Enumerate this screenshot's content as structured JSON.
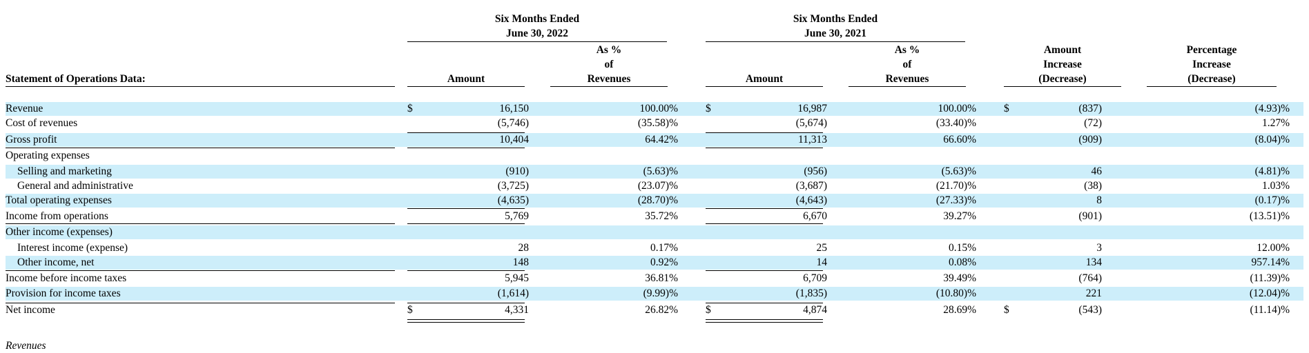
{
  "header": {
    "period1_line1": "Six Months Ended",
    "period1_line2": "June 30, 2022",
    "period2_line1": "Six Months Ended",
    "period2_line2": "June 30, 2021",
    "pct_line1": "As %",
    "pct_line2": "of",
    "pct_line3": "Revenues",
    "amount_label": "Amount",
    "change_amount_line1": "Amount",
    "change_amount_line2": "Increase",
    "change_amount_line3": "(Decrease)",
    "change_pct_line1": "Percentage",
    "change_pct_line2": "Increase",
    "change_pct_line3": "(Decrease)",
    "section_title": "Statement of Operations Data:"
  },
  "rows": [
    {
      "label": "Revenue",
      "indent": false,
      "shaded": true,
      "a2022": "16,150",
      "p2022": "100.00%",
      "a2021": "16,987",
      "p2021": "100.00%",
      "chg": "(837)",
      "chg_pct": "(4.93)%",
      "dollar": true
    },
    {
      "label": "Cost of revenues",
      "indent": false,
      "shaded": false,
      "a2022": "(5,746)",
      "p2022": "(35.58)%",
      "a2021": "(5,674)",
      "p2021": "(33.40)%",
      "chg": "(72)",
      "chg_pct": "1.27%"
    },
    {
      "label": "Gross profit",
      "indent": false,
      "shaded": true,
      "a2022": "10,404",
      "p2022": "64.42%",
      "a2021": "11,313",
      "p2021": "66.60%",
      "chg": "(909)",
      "chg_pct": "(8.04)%"
    },
    {
      "label": "Operating expenses",
      "indent": false,
      "shaded": false,
      "a2022": "",
      "p2022": "",
      "a2021": "",
      "p2021": "",
      "chg": "",
      "chg_pct": ""
    },
    {
      "label": "Selling and marketing",
      "indent": true,
      "shaded": true,
      "a2022": "(910)",
      "p2022": "(5.63)%",
      "a2021": "(956)",
      "p2021": "(5.63)%",
      "chg": "46",
      "chg_pct": "(4.81)%"
    },
    {
      "label": "General and administrative",
      "indent": true,
      "shaded": false,
      "a2022": "(3,725)",
      "p2022": "(23.07)%",
      "a2021": "(3,687)",
      "p2021": "(21.70)%",
      "chg": "(38)",
      "chg_pct": "1.03%"
    },
    {
      "label": "Total operating expenses",
      "indent": false,
      "shaded": true,
      "a2022": "(4,635)",
      "p2022": "(28.70)%",
      "a2021": "(4,643)",
      "p2021": "(27.33)%",
      "chg": "8",
      "chg_pct": "(0.17)%"
    },
    {
      "label": "Income from operations",
      "indent": false,
      "shaded": false,
      "a2022": "5,769",
      "p2022": "35.72%",
      "a2021": "6,670",
      "p2021": "39.27%",
      "chg": "(901)",
      "chg_pct": "(13.51)%"
    },
    {
      "label": "Other income (expenses)",
      "indent": false,
      "shaded": true,
      "a2022": "",
      "p2022": "",
      "a2021": "",
      "p2021": "",
      "chg": "",
      "chg_pct": ""
    },
    {
      "label": "Interest income (expense)",
      "indent": true,
      "shaded": false,
      "a2022": "28",
      "p2022": "0.17%",
      "a2021": "25",
      "p2021": "0.15%",
      "chg": "3",
      "chg_pct": "12.00%"
    },
    {
      "label": "Other income, net",
      "indent": true,
      "shaded": true,
      "a2022": "148",
      "p2022": "0.92%",
      "a2021": "14",
      "p2021": "0.08%",
      "chg": "134",
      "chg_pct": "957.14%"
    },
    {
      "label": "Income before income taxes",
      "indent": false,
      "shaded": false,
      "a2022": "5,945",
      "p2022": "36.81%",
      "a2021": "6,709",
      "p2021": "39.49%",
      "chg": "(764)",
      "chg_pct": "(11.39)%"
    },
    {
      "label": "Provision for income taxes",
      "indent": false,
      "shaded": true,
      "a2022": "(1,614)",
      "p2022": "(9.99)%",
      "a2021": "(1,835)",
      "p2021": "(10.80)%",
      "chg": "221",
      "chg_pct": "(12.04)%"
    },
    {
      "label": "Net income",
      "indent": false,
      "shaded": false,
      "a2022": "4,331",
      "p2022": "26.82%",
      "a2021": "4,874",
      "p2021": "28.69%",
      "chg": "(543)",
      "chg_pct": "(11.14)%",
      "dollar": true
    }
  ],
  "currency_symbol": "$",
  "footer_text": "Revenues"
}
